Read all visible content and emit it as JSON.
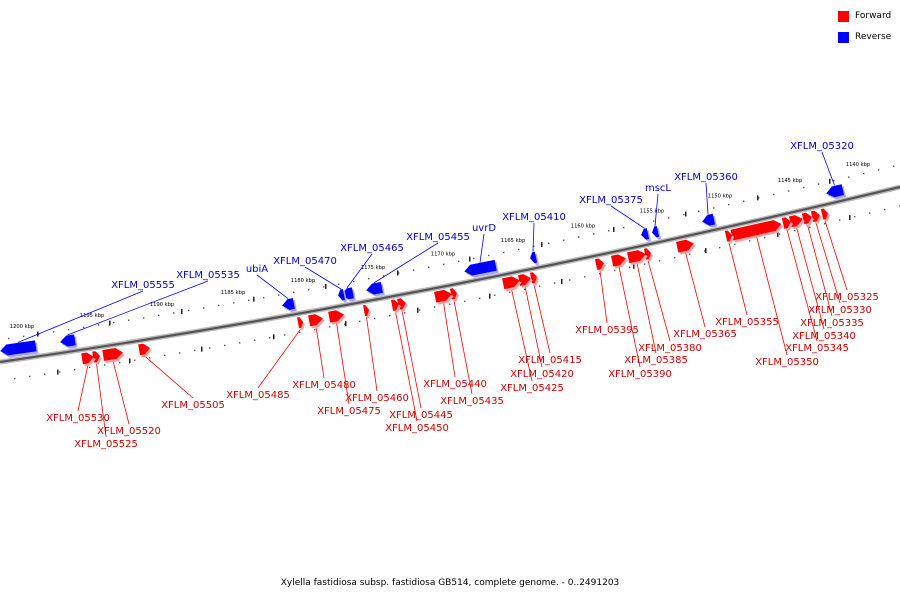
{
  "legend": {
    "forward_label": "Forward",
    "reverse_label": "Reverse",
    "forward_color": "#ff0000",
    "reverse_color": "#0000ff"
  },
  "caption": "Xylella fastidiosa subsp. fastidiosa GB514, complete genome. - 0..2491203",
  "scale_labels": {
    "upper": [
      "1140 kbp",
      "1145 kbp",
      "1150 kbp",
      "1155 kbp",
      "1160 kbp",
      "1165 kbp",
      "1170 kbp",
      "1175 kbp",
      "1180 kbp",
      "1185 kbp",
      "1190 kbp",
      "1195 kbp",
      "1200 kbp"
    ]
  },
  "reverse_genes": [
    "XFLM_05320",
    "XFLM_05360",
    "mscL",
    "XFLM_05375",
    "XFLM_05410",
    "uvrD",
    "XFLM_05455",
    "XFLM_05465",
    "XFLM_05470",
    "ubiA",
    "XFLM_05535",
    "XFLM_05555"
  ],
  "forward_genes": [
    "XFLM_05325",
    "XFLM_05330",
    "XFLM_05335",
    "XFLM_05340",
    "XFLM_05345",
    "XFLM_05350",
    "XFLM_05355",
    "XFLM_05365",
    "XFLM_05380",
    "XFLM_05385",
    "XFLM_05390",
    "XFLM_05395",
    "XFLM_05415",
    "XFLM_05420",
    "XFLM_05425",
    "XFLM_05435",
    "XFLM_05440",
    "XFLM_05445",
    "XFLM_05450",
    "XFLM_05460",
    "XFLM_05475",
    "XFLM_05480",
    "XFLM_05485",
    "XFLM_05505",
    "XFLM_05520",
    "XFLM_05525",
    "XFLM_05530"
  ]
}
